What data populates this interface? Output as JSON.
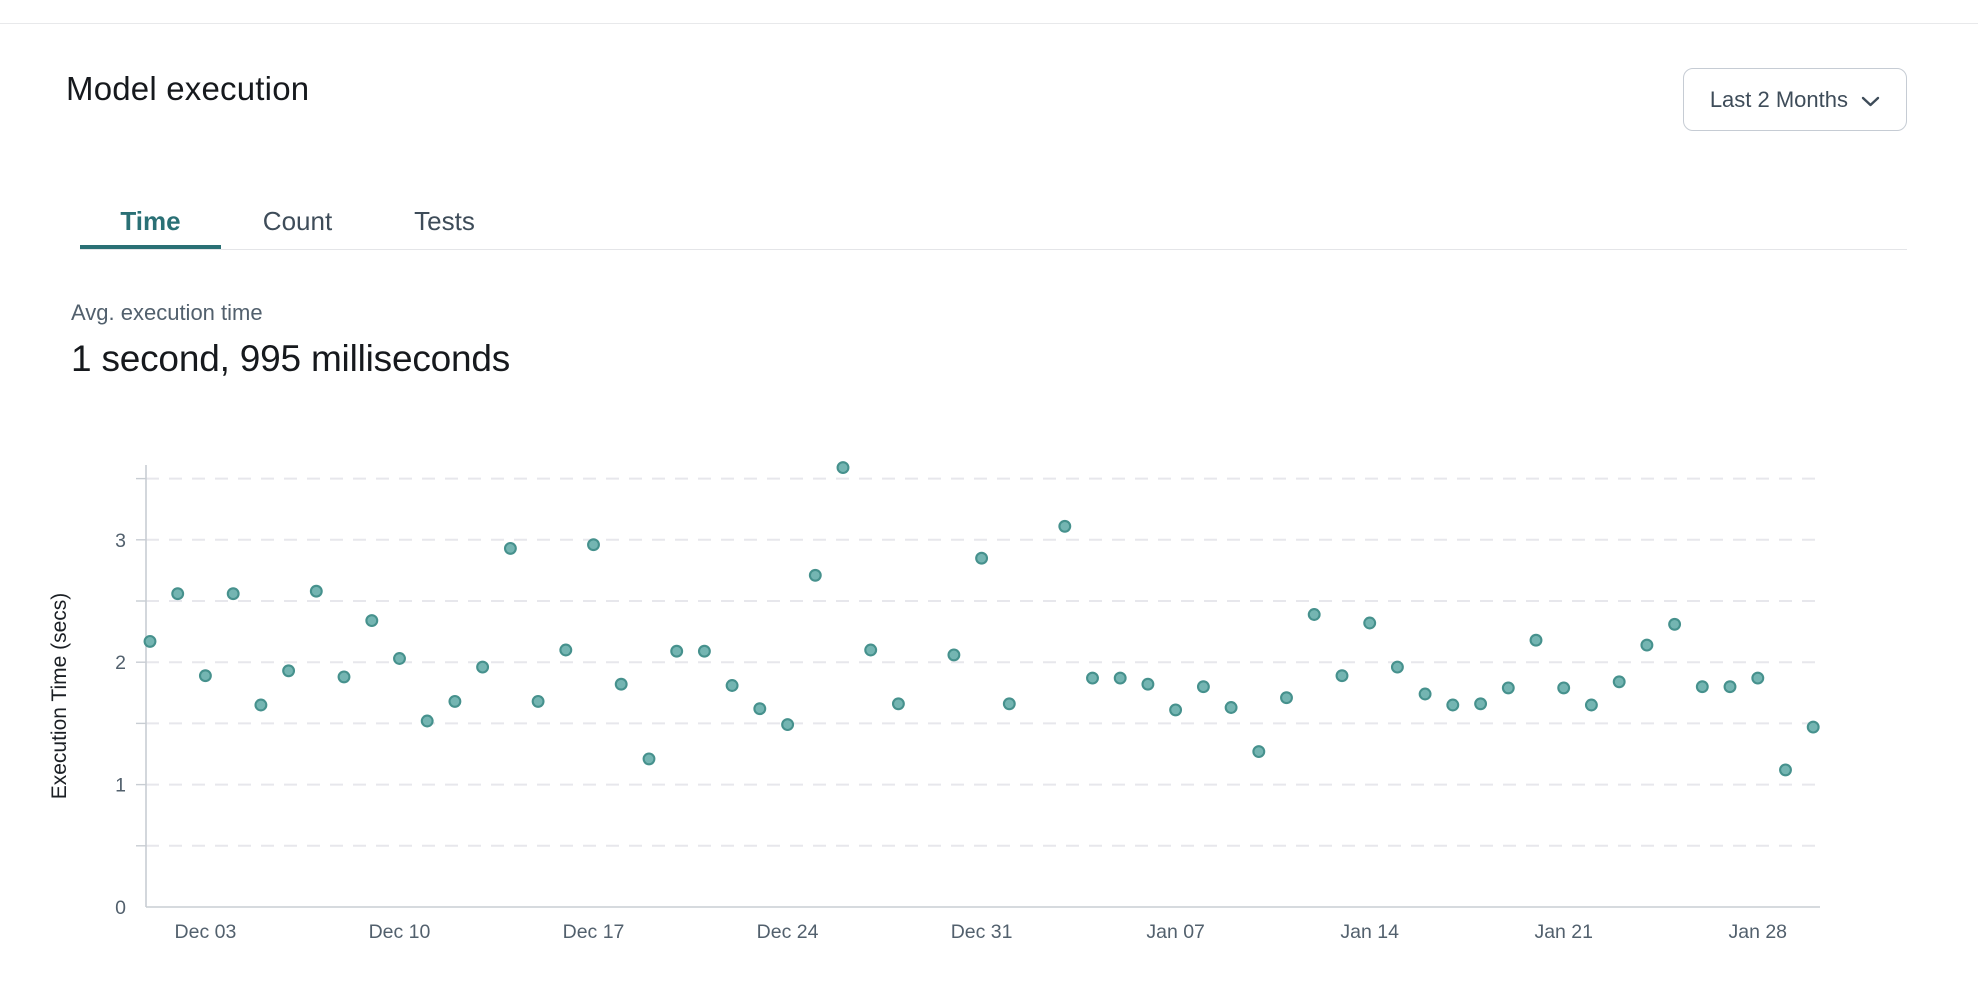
{
  "header": {
    "title": "Model execution",
    "range_selector": {
      "label": "Last 2 Months",
      "icon": "chevron-down-icon"
    }
  },
  "tabs": [
    {
      "label": "Time",
      "active": true
    },
    {
      "label": "Count",
      "active": false
    },
    {
      "label": "Tests",
      "active": false
    }
  ],
  "metric": {
    "label": "Avg. execution time",
    "value": "1 second, 995 milliseconds"
  },
  "colors": {
    "accent_teal": "#2a7075",
    "point_fill": "#74b5b2",
    "point_stroke": "#46918d",
    "grid_line": "#e7e7ec",
    "axis_spine": "#c8cdd3",
    "tick_text": "#52606d",
    "axis_title_text": "#1b1f24"
  },
  "chart_data": {
    "type": "scatter",
    "title": "",
    "xlabel": "",
    "ylabel": "Execution Time (secs)",
    "ylim": [
      0,
      3.75
    ],
    "grid": "dashed horizontal every 0.5",
    "grid_step": 0.5,
    "grid_max": 3.5,
    "y_ticks": [
      0,
      1,
      2,
      3
    ],
    "x_ticks": [
      {
        "label": "Dec 03",
        "day": 2
      },
      {
        "label": "Dec 10",
        "day": 9
      },
      {
        "label": "Dec 17",
        "day": 16
      },
      {
        "label": "Dec 24",
        "day": 23
      },
      {
        "label": "Dec 31",
        "day": 30
      },
      {
        "label": "Jan 07",
        "day": 37
      },
      {
        "label": "Jan 14",
        "day": 44
      },
      {
        "label": "Jan 21",
        "day": 51
      },
      {
        "label": "Jan 28",
        "day": 58
      }
    ],
    "series": [
      {
        "name": "avg-execution-time-secs",
        "points": [
          {
            "day": 0,
            "date": "Dec 01",
            "value": 2.17
          },
          {
            "day": 1,
            "date": "Dec 02",
            "value": 2.56
          },
          {
            "day": 2,
            "date": "Dec 03",
            "value": 1.89
          },
          {
            "day": 3,
            "date": "Dec 04",
            "value": 2.56
          },
          {
            "day": 4,
            "date": "Dec 05",
            "value": 1.65
          },
          {
            "day": 5,
            "date": "Dec 06",
            "value": 1.93
          },
          {
            "day": 6,
            "date": "Dec 07",
            "value": 2.58
          },
          {
            "day": 7,
            "date": "Dec 08",
            "value": 1.88
          },
          {
            "day": 8,
            "date": "Dec 09",
            "value": 2.34
          },
          {
            "day": 9,
            "date": "Dec 10",
            "value": 2.03
          },
          {
            "day": 10,
            "date": "Dec 11",
            "value": 1.52
          },
          {
            "day": 11,
            "date": "Dec 12",
            "value": 1.68
          },
          {
            "day": 12,
            "date": "Dec 13",
            "value": 1.96
          },
          {
            "day": 13,
            "date": "Dec 14",
            "value": 2.93
          },
          {
            "day": 14,
            "date": "Dec 15",
            "value": 1.68
          },
          {
            "day": 15,
            "date": "Dec 16",
            "value": 2.1
          },
          {
            "day": 16,
            "date": "Dec 17",
            "value": 2.96
          },
          {
            "day": 17,
            "date": "Dec 18",
            "value": 1.82
          },
          {
            "day": 18,
            "date": "Dec 19",
            "value": 1.21
          },
          {
            "day": 19,
            "date": "Dec 20",
            "value": 2.09
          },
          {
            "day": 20,
            "date": "Dec 21",
            "value": 2.09
          },
          {
            "day": 21,
            "date": "Dec 22",
            "value": 1.81
          },
          {
            "day": 22,
            "date": "Dec 23",
            "value": 1.62
          },
          {
            "day": 23,
            "date": "Dec 24",
            "value": 1.49
          },
          {
            "day": 24,
            "date": "Dec 25",
            "value": 2.71
          },
          {
            "day": 25,
            "date": "Dec 26",
            "value": 3.59
          },
          {
            "day": 26,
            "date": "Dec 27",
            "value": 2.1
          },
          {
            "day": 27,
            "date": "Dec 28",
            "value": 1.66
          },
          {
            "day": 29,
            "date": "Dec 30",
            "value": 2.06
          },
          {
            "day": 30,
            "date": "Dec 31",
            "value": 2.85
          },
          {
            "day": 31,
            "date": "Jan 01",
            "value": 1.66
          },
          {
            "day": 33,
            "date": "Jan 03",
            "value": 3.11
          },
          {
            "day": 34,
            "date": "Jan 04",
            "value": 1.87
          },
          {
            "day": 35,
            "date": "Jan 05",
            "value": 1.87
          },
          {
            "day": 36,
            "date": "Jan 06",
            "value": 1.82
          },
          {
            "day": 37,
            "date": "Jan 07",
            "value": 1.61
          },
          {
            "day": 38,
            "date": "Jan 08",
            "value": 1.8
          },
          {
            "day": 39,
            "date": "Jan 09",
            "value": 1.63
          },
          {
            "day": 40,
            "date": "Jan 10",
            "value": 1.27
          },
          {
            "day": 41,
            "date": "Jan 11",
            "value": 1.71
          },
          {
            "day": 42,
            "date": "Jan 12",
            "value": 2.39
          },
          {
            "day": 43,
            "date": "Jan 13",
            "value": 1.89
          },
          {
            "day": 44,
            "date": "Jan 14",
            "value": 2.32
          },
          {
            "day": 45,
            "date": "Jan 15",
            "value": 1.96
          },
          {
            "day": 46,
            "date": "Jan 16",
            "value": 1.74
          },
          {
            "day": 47,
            "date": "Jan 17",
            "value": 1.65
          },
          {
            "day": 48,
            "date": "Jan 18",
            "value": 1.66
          },
          {
            "day": 49,
            "date": "Jan 19",
            "value": 1.79
          },
          {
            "day": 50,
            "date": "Jan 20",
            "value": 2.18
          },
          {
            "day": 51,
            "date": "Jan 21",
            "value": 1.79
          },
          {
            "day": 52,
            "date": "Jan 22",
            "value": 1.65
          },
          {
            "day": 53,
            "date": "Jan 23",
            "value": 1.84
          },
          {
            "day": 54,
            "date": "Jan 24",
            "value": 2.14
          },
          {
            "day": 55,
            "date": "Jan 25",
            "value": 2.31
          },
          {
            "day": 56,
            "date": "Jan 26",
            "value": 1.8
          },
          {
            "day": 57,
            "date": "Jan 27",
            "value": 1.8
          },
          {
            "day": 58,
            "date": "Jan 28",
            "value": 1.87
          },
          {
            "day": 59,
            "date": "Jan 29",
            "value": 1.12
          },
          {
            "day": 60,
            "date": "Jan 30",
            "value": 1.47
          }
        ]
      }
    ]
  }
}
